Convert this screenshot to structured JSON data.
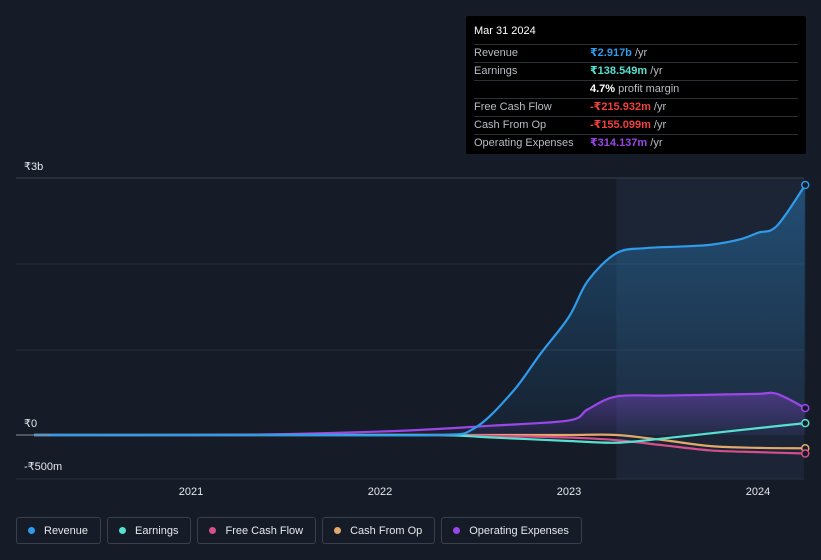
{
  "chart_data": {
    "type": "area",
    "y_unit_label_top": "₹3b",
    "y_zero_label": "₹0",
    "y_bottom_label": "-₹500m",
    "ylim": [
      -500,
      3000
    ],
    "x_ticks": [
      "2021",
      "2022",
      "2023",
      "2024"
    ],
    "grid": true,
    "highlight_from": 2023.25,
    "series": [
      {
        "name": "Revenue",
        "color": "#2f9bea",
        "fill": true,
        "x": [
          2020.17,
          2021.5,
          2022.3,
          2022.5,
          2022.7,
          2022.85,
          2023.0,
          2023.1,
          2023.25,
          2023.4,
          2023.6,
          2023.75,
          2023.9,
          2024.0,
          2024.1,
          2024.25
        ],
        "y": [
          0,
          0,
          0,
          80,
          500,
          950,
          1380,
          1800,
          2120,
          2180,
          2200,
          2220,
          2280,
          2360,
          2440,
          2917
        ]
      },
      {
        "name": "Earnings",
        "color": "#56e0cf",
        "fill": false,
        "x": [
          2020.17,
          2021.5,
          2022.3,
          2022.6,
          2023.0,
          2023.25,
          2023.5,
          2023.75,
          2024.0,
          2024.25
        ],
        "y": [
          0,
          0,
          0,
          -30,
          -70,
          -90,
          -40,
          20,
          80,
          138.549
        ]
      },
      {
        "name": "Free Cash Flow",
        "color": "#d54f8d",
        "fill": false,
        "x": [
          2020.17,
          2021.5,
          2022.3,
          2022.6,
          2023.0,
          2023.25,
          2023.5,
          2023.75,
          2024.0,
          2024.25
        ],
        "y": [
          0,
          0,
          0,
          -10,
          -30,
          -60,
          -120,
          -180,
          -200,
          -215.932
        ]
      },
      {
        "name": "Cash From Op",
        "color": "#e3a96a",
        "fill": false,
        "x": [
          2020.17,
          2021.5,
          2022.3,
          2022.6,
          2023.0,
          2023.25,
          2023.5,
          2023.75,
          2024.0,
          2024.25
        ],
        "y": [
          0,
          0,
          0,
          0,
          0,
          0,
          -60,
          -130,
          -150,
          -155.099
        ]
      },
      {
        "name": "Operating Expenses",
        "color": "#9b47e8",
        "fill": true,
        "x": [
          2020.17,
          2021.0,
          2021.5,
          2022.0,
          2022.3,
          2022.6,
          2023.0,
          2023.1,
          2023.25,
          2023.5,
          2023.75,
          2024.0,
          2024.1,
          2024.25
        ],
        "y": [
          0,
          0,
          10,
          40,
          70,
          110,
          170,
          300,
          450,
          460,
          470,
          480,
          480,
          314.137
        ]
      }
    ]
  },
  "tooltip": {
    "date": "Mar 31 2024",
    "rows": [
      {
        "name": "Revenue",
        "value": "₹2.917b",
        "unit": " /yr",
        "color": "#2f9bea"
      },
      {
        "name": "Earnings",
        "value": "₹138.549m",
        "unit": " /yr",
        "color": "#56e0cf"
      },
      {
        "name": "",
        "value": "4.7%",
        "unit": " profit margin",
        "color": "#ffffff"
      },
      {
        "name": "Free Cash Flow",
        "value": "-₹215.932m",
        "unit": " /yr",
        "color": "#f0413c"
      },
      {
        "name": "Cash From Op",
        "value": "-₹155.099m",
        "unit": " /yr",
        "color": "#f0413c"
      },
      {
        "name": "Operating Expenses",
        "value": "₹314.137m",
        "unit": " /yr",
        "color": "#9b47e8"
      }
    ]
  },
  "legend": [
    {
      "label": "Revenue",
      "color": "#2f9bea"
    },
    {
      "label": "Earnings",
      "color": "#56e0cf"
    },
    {
      "label": "Free Cash Flow",
      "color": "#d54f8d"
    },
    {
      "label": "Cash From Op",
      "color": "#e3a96a"
    },
    {
      "label": "Operating Expenses",
      "color": "#9b47e8"
    }
  ]
}
